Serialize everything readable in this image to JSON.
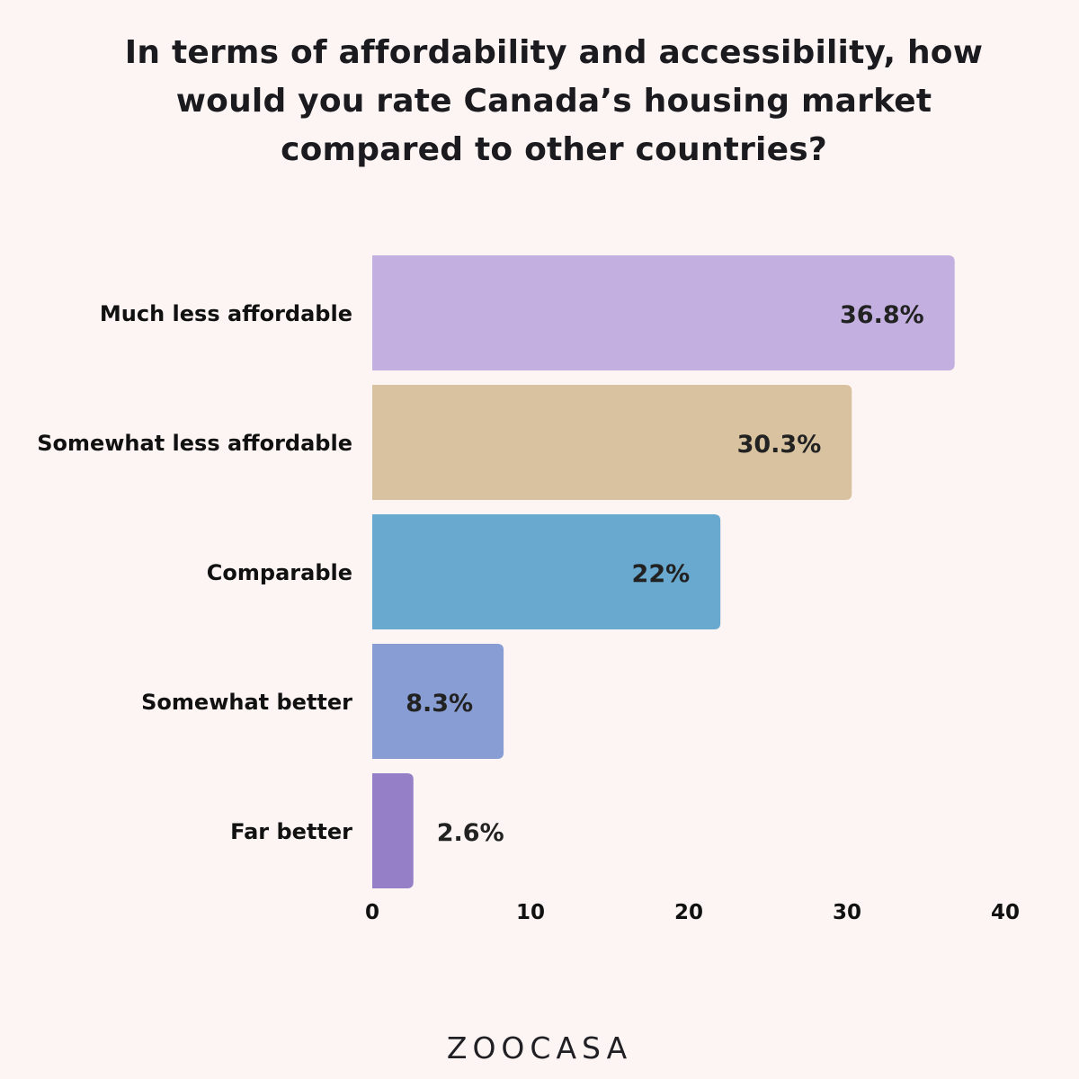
{
  "title_lines": [
    "In terms of affordability and accessibility, how",
    "would you rate Canada’s housing market",
    "compared to other countries?"
  ],
  "logo": "ZOOCASA",
  "chart_data": {
    "type": "bar",
    "orientation": "horizontal",
    "title": "In terms of affordability and accessibility, how would you rate Canada’s housing market compared to other countries?",
    "categories": [
      "Much less affordable",
      "Somewhat less affordable",
      "Comparable",
      "Somewhat better",
      "Far better"
    ],
    "values": [
      36.8,
      30.3,
      22,
      8.3,
      2.6
    ],
    "value_labels": [
      "36.8%",
      "30.3%",
      "22%",
      "8.3%",
      "2.6%"
    ],
    "colors": [
      "#c3b0e0",
      "#d8c2a0",
      "#69a9cf",
      "#879dd3",
      "#9580c7"
    ],
    "xlim": [
      0,
      40
    ],
    "xticks": [
      0,
      10,
      20,
      30,
      40
    ],
    "xlabel": "",
    "ylabel": "",
    "grid": false,
    "legend": "none"
  }
}
